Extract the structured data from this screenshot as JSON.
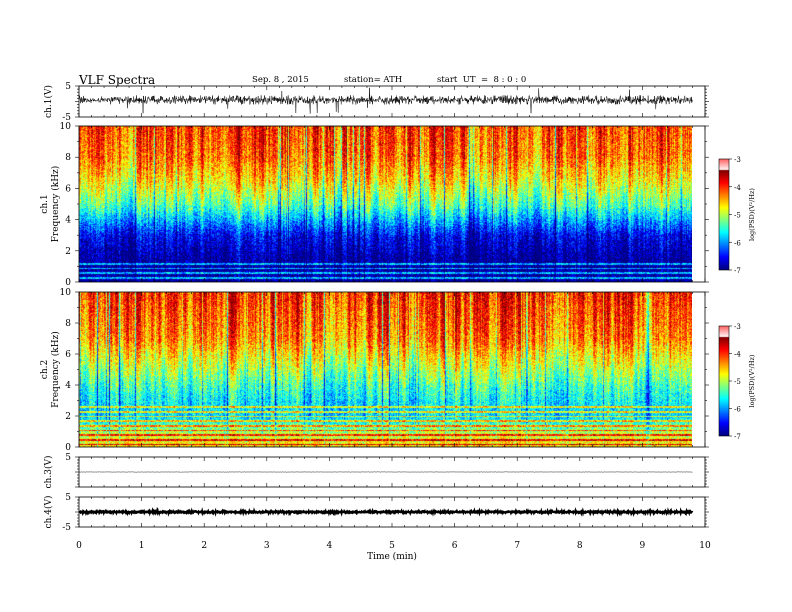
{
  "header": {
    "title": "VLF Spectra",
    "date": "Sep. 8 , 2015",
    "station": "station= ATH",
    "start": "start  UT  =  8 : 0 : 0"
  },
  "chart_data": [
    {
      "id": "ch1-waveform",
      "type": "line",
      "ylabel": "ch.1(V)",
      "ylim": [
        -5,
        5
      ],
      "y_ticklabels": [
        "5",
        "-5"
      ],
      "xlim": [
        0,
        10
      ],
      "data_extent_min": 9.8,
      "baseline": 0.5,
      "noise_amplitude": 1.5,
      "spike_amplitude": 4.5
    },
    {
      "id": "ch1-spectrogram",
      "type": "heatmap",
      "ylabel": "ch.1\nFrequency  (kHz)",
      "ylim": [
        0,
        10
      ],
      "y_ticklabels": [
        "0",
        "2",
        "4",
        "6",
        "8",
        "10"
      ],
      "xlim": [
        0,
        10
      ],
      "data_extent_min": 9.8,
      "colorbar": {
        "label": "log(PSD)(V²/Hz)",
        "range": [
          -7,
          -3
        ],
        "ticklabels": [
          "-3",
          "-4",
          "-5",
          "-6",
          "-7"
        ]
      },
      "level_profile": [
        {
          "freq_khz": 0.0,
          "logpsd": -6.9
        },
        {
          "freq_khz": 1.5,
          "logpsd": -6.9
        },
        {
          "freq_khz": 3.0,
          "logpsd": -6.5
        },
        {
          "freq_khz": 4.0,
          "logpsd": -5.8
        },
        {
          "freq_khz": 5.0,
          "logpsd": -5.1
        },
        {
          "freq_khz": 6.5,
          "logpsd": -4.4
        },
        {
          "freq_khz": 8.0,
          "logpsd": -3.9
        },
        {
          "freq_khz": 10.0,
          "logpsd": -3.7
        }
      ],
      "horizontal_lines_khz": [
        0.3,
        0.6,
        0.9,
        1.2
      ]
    },
    {
      "id": "ch2-spectrogram",
      "type": "heatmap",
      "ylabel": "ch.2\nFrequency  (kHz)",
      "ylim": [
        0,
        10
      ],
      "y_ticklabels": [
        "0",
        "2",
        "4",
        "6",
        "8",
        "10"
      ],
      "xlim": [
        0,
        10
      ],
      "data_extent_min": 9.8,
      "colorbar": {
        "label": "log(PSD)(V²/Hz)",
        "range": [
          -7,
          -3
        ],
        "ticklabels": [
          "-3",
          "-4",
          "-5",
          "-6",
          "-7"
        ]
      },
      "level_profile": [
        {
          "freq_khz": 0.0,
          "logpsd": -4.3
        },
        {
          "freq_khz": 1.0,
          "logpsd": -4.8
        },
        {
          "freq_khz": 2.0,
          "logpsd": -5.6
        },
        {
          "freq_khz": 3.0,
          "logpsd": -5.5
        },
        {
          "freq_khz": 4.0,
          "logpsd": -5.2
        },
        {
          "freq_khz": 5.5,
          "logpsd": -4.6
        },
        {
          "freq_khz": 7.0,
          "logpsd": -4.0
        },
        {
          "freq_khz": 10.0,
          "logpsd": -3.6
        }
      ],
      "horizontal_lines_khz": [
        0.2,
        0.5,
        0.8,
        1.1,
        1.4,
        1.7,
        2.0,
        2.3,
        2.6
      ]
    },
    {
      "id": "ch3-waveform",
      "type": "line",
      "ylabel": "ch.3(V)",
      "ylim": [
        -5,
        5
      ],
      "y_ticklabels": [
        "5"
      ],
      "xlim": [
        0,
        10
      ],
      "data_extent_min": 9.8,
      "baseline": 0.0,
      "noise_amplitude": 0.08
    },
    {
      "id": "ch4-waveform",
      "type": "line",
      "ylabel": "ch.4(V)",
      "ylim": [
        -5,
        5
      ],
      "y_ticklabels": [
        "5",
        "-5"
      ],
      "xlim": [
        0,
        10
      ],
      "data_extent_min": 9.8,
      "baseline": 0.0,
      "noise_amplitude": 0.3
    }
  ],
  "xaxis": {
    "label": "Time  (min)",
    "range": [
      0,
      10
    ],
    "ticklabels": [
      "0",
      "1",
      "2",
      "3",
      "4",
      "5",
      "6",
      "7",
      "8",
      "9",
      "10"
    ]
  }
}
